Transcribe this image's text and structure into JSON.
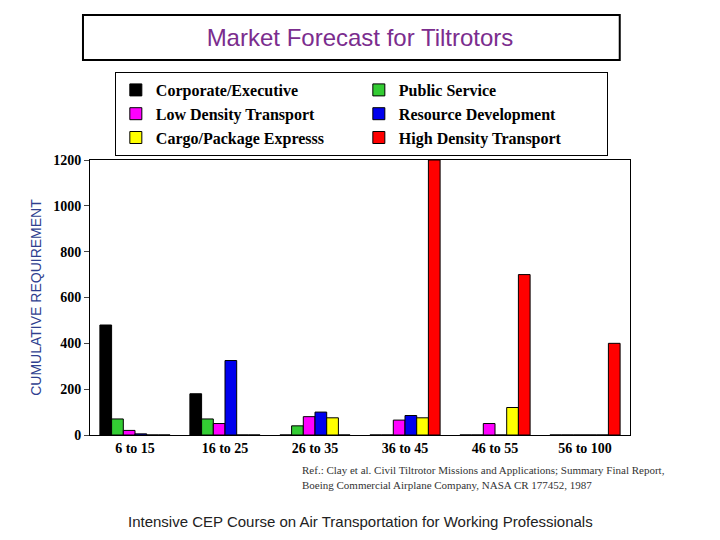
{
  "chart_data": {
    "type": "bar",
    "title": "Market Forecast for Tiltrotors",
    "y_label": "CUMULATIVE REQUIREMENT",
    "categories": [
      "6 to 15",
      "16 to 25",
      "26 to 35",
      "36 to 45",
      "46 to 55",
      "56 to 100"
    ],
    "series": [
      {
        "name": "Corporate/Executive",
        "color": "#000000",
        "values": [
          480,
          180,
          0,
          0,
          0,
          0
        ]
      },
      {
        "name": "Public Service",
        "color": "#33cc33",
        "values": [
          70,
          70,
          40,
          0,
          0,
          0
        ]
      },
      {
        "name": "Low Density Transport",
        "color": "#ff00ff",
        "values": [
          20,
          50,
          80,
          65,
          50,
          0
        ]
      },
      {
        "name": "Resource Development",
        "color": "#0000ee",
        "values": [
          5,
          325,
          100,
          85,
          0,
          0
        ]
      },
      {
        "name": "Cargo/Package Expresss",
        "color": "#ffff00",
        "values": [
          0,
          0,
          75,
          75,
          120,
          0
        ]
      },
      {
        "name": "High Density Transport",
        "color": "#ff0000",
        "values": [
          0,
          0,
          0,
          1200,
          700,
          400
        ]
      }
    ],
    "ylim": [
      0,
      1200
    ],
    "yticks": [
      0,
      200,
      400,
      600,
      800,
      1000,
      1200
    ],
    "grid": false,
    "legend": "top",
    "annotations": [
      "Ref.: Clay et al. Civil Tiltrotor Missions and Applications; Summary Final Report,",
      "Boeing Commercial Airplane Company, NASA CR 177452, 1987",
      "Intensive CEP Course on Air Transportation for Working Professionals"
    ]
  }
}
